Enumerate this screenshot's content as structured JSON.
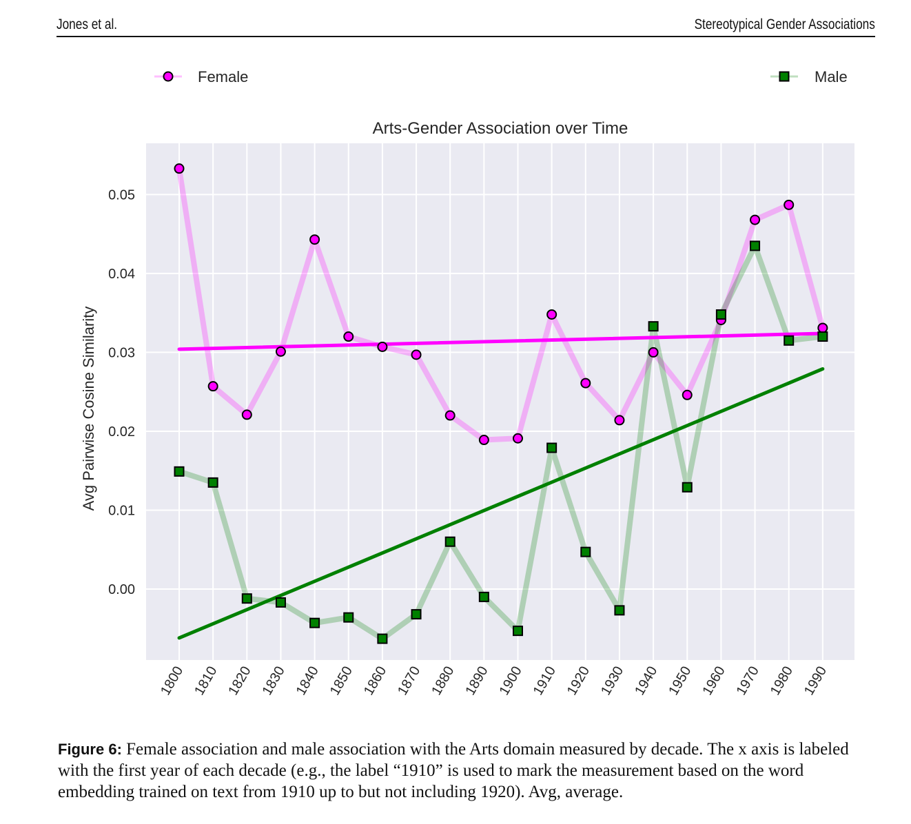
{
  "header": {
    "left": "Jones et al.",
    "right": "Stereotypical Gender Associations"
  },
  "chart_data": {
    "type": "line",
    "title": "Arts-Gender Association over Time",
    "xlabel": "",
    "ylabel": "Avg Pairwise Cosine Similarity",
    "categories": [
      "1800",
      "1810",
      "1820",
      "1830",
      "1840",
      "1850",
      "1860",
      "1870",
      "1880",
      "1890",
      "1900",
      "1910",
      "1920",
      "1930",
      "1940",
      "1950",
      "1960",
      "1970",
      "1980",
      "1990"
    ],
    "yticks": [
      "0.00",
      "0.01",
      "0.02",
      "0.03",
      "0.04",
      "0.05"
    ],
    "yticks_values": [
      0,
      0.01,
      0.02,
      0.03,
      0.04,
      0.05
    ],
    "ylim": [
      -0.009,
      0.0565
    ],
    "grid": true,
    "legend_placement": "top, outside plot (Female left, Male right)",
    "series": [
      {
        "name": "Female",
        "color": "#ff00ff",
        "marker": "circle",
        "values": [
          0.0533,
          0.0257,
          0.0221,
          0.0301,
          0.0443,
          0.032,
          0.0307,
          0.0297,
          0.022,
          0.0189,
          0.0191,
          0.0348,
          0.0261,
          0.0214,
          0.03,
          0.0246,
          0.0341,
          0.0468,
          0.0487,
          0.0331
        ],
        "trend": [
          0.0304,
          0.0324
        ]
      },
      {
        "name": "Male",
        "color": "#008000",
        "marker": "square",
        "values": [
          0.0149,
          0.0135,
          -0.0012,
          -0.0017,
          -0.0043,
          -0.0036,
          -0.0063,
          -0.0032,
          0.006,
          -0.001,
          -0.0053,
          0.0179,
          0.0047,
          -0.0027,
          0.0333,
          0.0129,
          0.0348,
          0.0435,
          0.0315,
          0.032
        ],
        "trend": [
          -0.0062,
          0.0279
        ]
      }
    ]
  },
  "caption": {
    "label": "Figure 6:",
    "text": " Female association and male association with the Arts domain measured by decade. The x axis is labeled with the first year of each decade (e.g., the label “1910” is used to mark the measurement based on the word embedding trained on text from 1910 up to but not including 1920). Avg, average."
  }
}
